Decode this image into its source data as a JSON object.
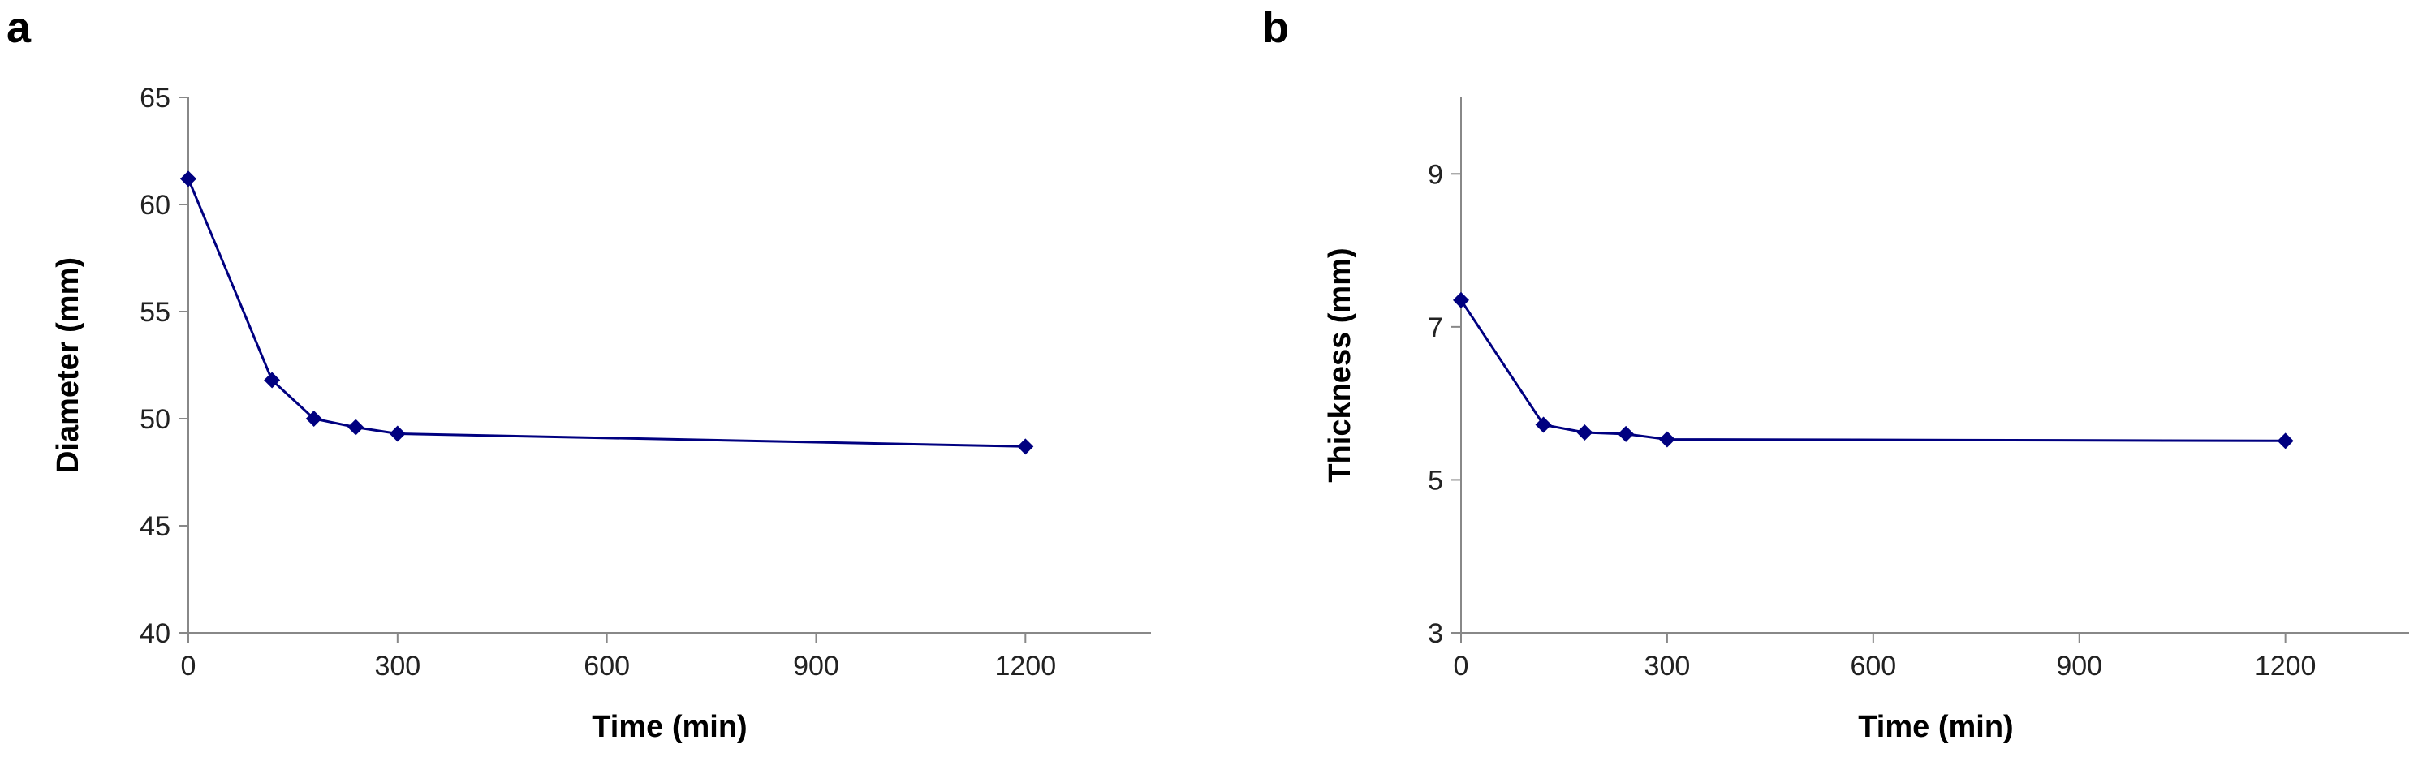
{
  "chart_data": [
    {
      "panel": "a",
      "type": "line",
      "xlabel": "Time (min)",
      "ylabel": "Diameter (mm)",
      "xlim": [
        0,
        1380
      ],
      "ylim": [
        40,
        65
      ],
      "xticks": [
        0,
        300,
        600,
        900,
        1200
      ],
      "yticks": [
        40,
        45,
        50,
        55,
        60,
        65
      ],
      "grid": false,
      "series": [
        {
          "color": "#000080",
          "marker": "diamond",
          "x": [
            0,
            120,
            180,
            240,
            300,
            1200
          ],
          "y": [
            61.2,
            51.8,
            50.0,
            49.6,
            49.3,
            48.7
          ]
        }
      ]
    },
    {
      "panel": "b",
      "type": "line",
      "xlabel": "Time (min)",
      "ylabel": "Thickness (mm)",
      "xlim": [
        0,
        1380
      ],
      "ylim": [
        3,
        10
      ],
      "xticks": [
        0,
        300,
        600,
        900,
        1200
      ],
      "yticks": [
        3,
        5,
        7,
        9
      ],
      "grid": false,
      "series": [
        {
          "color": "#000080",
          "marker": "diamond",
          "x": [
            0,
            120,
            180,
            240,
            300,
            1200
          ],
          "y": [
            7.35,
            5.72,
            5.62,
            5.6,
            5.53,
            5.51
          ]
        }
      ]
    }
  ]
}
